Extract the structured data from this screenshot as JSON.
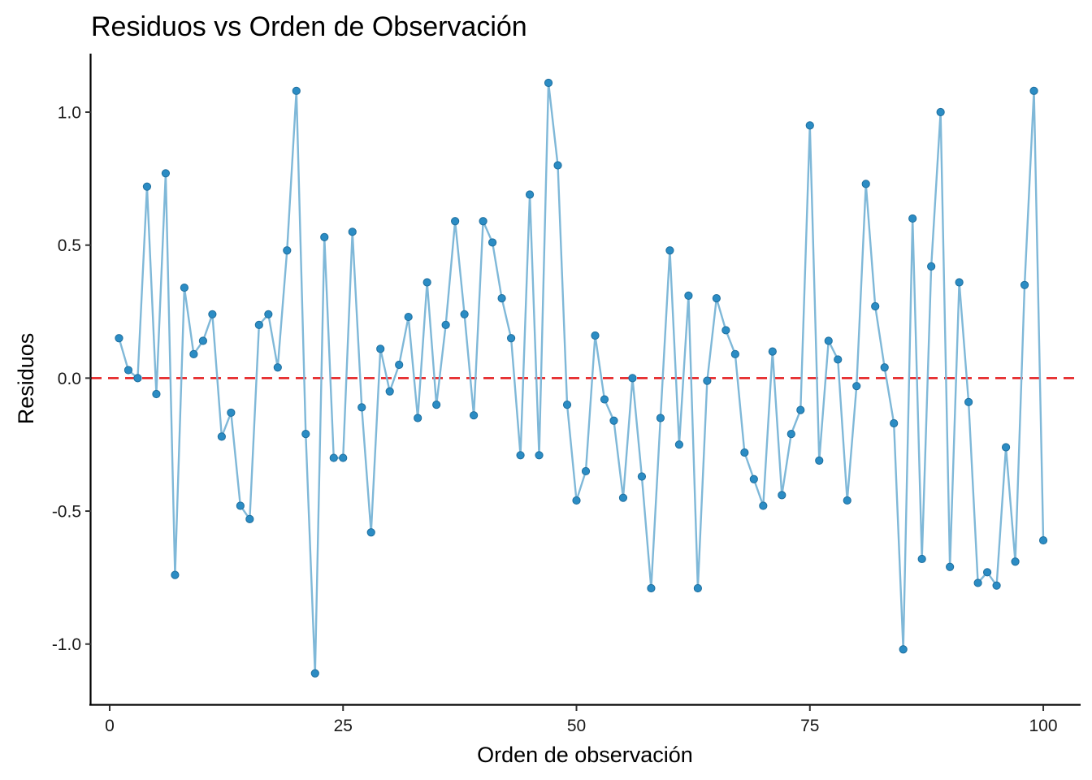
{
  "chart_data": {
    "type": "line",
    "title": "Residuos vs Orden de Observación",
    "xlabel": "Orden de observación",
    "ylabel": "Residuos",
    "xlim": [
      -2,
      104
    ],
    "ylim": [
      -1.23,
      1.22
    ],
    "x_ticks": [
      0,
      25,
      50,
      75,
      100
    ],
    "x_tick_labels": [
      "0",
      "25",
      "50",
      "75",
      "100"
    ],
    "y_ticks": [
      -1.0,
      -0.5,
      0.0,
      0.5,
      1.0
    ],
    "y_tick_labels": [
      "-1.0",
      "-0.5",
      "0.0",
      "0.5",
      "1.0"
    ],
    "grid": false,
    "reference_line": {
      "y": 0,
      "style": "dashed",
      "color": "#e41a1c"
    },
    "line_color": "#7fb8d8",
    "point_color": "#2b8cc4",
    "series": [
      {
        "x": [
          1,
          2,
          3,
          4,
          5,
          6,
          7,
          8,
          9,
          10,
          11,
          12,
          13,
          14,
          15,
          16,
          17,
          18,
          19,
          20,
          21,
          22,
          23,
          24,
          25,
          26,
          27,
          28,
          29,
          30,
          31,
          32,
          33,
          34,
          35,
          36,
          37,
          38,
          39,
          40,
          41,
          42,
          43,
          44,
          45,
          46,
          47,
          48,
          49,
          50,
          51,
          52,
          53,
          54,
          55,
          56,
          57,
          58,
          59,
          60,
          61,
          62,
          63,
          64,
          65,
          66,
          67,
          68,
          69,
          70,
          71,
          72,
          73,
          74,
          75,
          76,
          77,
          78,
          79,
          80,
          81,
          82,
          83,
          84,
          85,
          86,
          87,
          88,
          89,
          90,
          91,
          92,
          93,
          94,
          95,
          96,
          97,
          98,
          99,
          100
        ],
        "values": [
          0.15,
          0.03,
          0.0,
          0.72,
          -0.06,
          0.77,
          -0.74,
          0.34,
          0.09,
          0.14,
          0.24,
          -0.22,
          -0.13,
          -0.48,
          -0.53,
          0.2,
          0.24,
          0.04,
          0.48,
          1.08,
          -0.21,
          -1.11,
          0.53,
          -0.3,
          -0.3,
          0.55,
          -0.11,
          -0.58,
          0.11,
          -0.05,
          0.05,
          0.23,
          -0.15,
          0.36,
          -0.1,
          0.2,
          0.59,
          0.24,
          -0.14,
          0.59,
          0.51,
          0.3,
          0.15,
          -0.29,
          0.69,
          -0.29,
          1.11,
          0.8,
          -0.1,
          -0.46,
          -0.35,
          0.16,
          -0.08,
          -0.16,
          -0.45,
          0.0,
          -0.37,
          -0.79,
          -0.15,
          0.48,
          -0.25,
          0.31,
          -0.79,
          -0.01,
          0.3,
          0.18,
          0.09,
          -0.28,
          -0.38,
          -0.48,
          0.1,
          -0.44,
          -0.21,
          -0.12,
          0.95,
          -0.31,
          0.14,
          0.07,
          -0.46,
          -0.03,
          0.73,
          0.27,
          0.04,
          -0.17,
          -1.02,
          0.6,
          -0.68,
          0.42,
          1.0,
          -0.71,
          0.36,
          -0.09,
          -0.77,
          -0.73,
          -0.78,
          -0.26,
          -0.69,
          0.35,
          1.08,
          -0.61
        ]
      }
    ]
  }
}
